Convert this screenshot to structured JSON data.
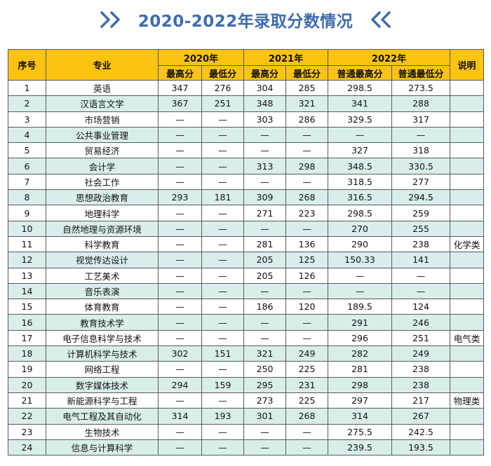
{
  "title": "2020-2022年录取分数情况",
  "headers": {
    "index": "序号",
    "major": "专业",
    "y2020": "2020年",
    "y2021": "2021年",
    "y2022": "2022年",
    "note": "说明",
    "max": "最高分",
    "min": "最低分",
    "common_max": "普通最高分",
    "common_min": "普通最低分"
  },
  "rows": [
    [
      "1",
      "英语",
      "347",
      "276",
      "304",
      "285",
      "298.5",
      "273.5",
      ""
    ],
    [
      "2",
      "汉语言文学",
      "367",
      "251",
      "348",
      "321",
      "341",
      "288",
      ""
    ],
    [
      "3",
      "市场营销",
      "—",
      "—",
      "303",
      "286",
      "329.5",
      "317",
      ""
    ],
    [
      "4",
      "公共事业管理",
      "—",
      "—",
      "—",
      "—",
      "—",
      "—",
      ""
    ],
    [
      "5",
      "贸易经济",
      "—",
      "—",
      "—",
      "—",
      "327",
      "318",
      ""
    ],
    [
      "6",
      "会计学",
      "—",
      "—",
      "313",
      "298",
      "348.5",
      "330.5",
      ""
    ],
    [
      "7",
      "社会工作",
      "—",
      "—",
      "—",
      "—",
      "318.5",
      "277",
      ""
    ],
    [
      "8",
      "思想政治教育",
      "293",
      "181",
      "309",
      "268",
      "316.5",
      "294.5",
      ""
    ],
    [
      "9",
      "地理科学",
      "—",
      "—",
      "271",
      "223",
      "298.5",
      "259",
      ""
    ],
    [
      "10",
      "自然地理与资源环境",
      "—",
      "—",
      "—",
      "—",
      "270",
      "255",
      ""
    ],
    [
      "11",
      "科学教育",
      "—",
      "—",
      "281",
      "136",
      "290",
      "238",
      "化学类"
    ],
    [
      "12",
      "视觉传达设计",
      "—",
      "—",
      "205",
      "125",
      "150.33",
      "141",
      ""
    ],
    [
      "13",
      "工艺美术",
      "—",
      "—",
      "205",
      "126",
      "—",
      "—",
      ""
    ],
    [
      "14",
      "音乐表演",
      "—",
      "—",
      "—",
      "—",
      "—",
      "—",
      ""
    ],
    [
      "15",
      "体育教育",
      "—",
      "—",
      "186",
      "120",
      "189.5",
      "124",
      ""
    ],
    [
      "16",
      "教育技术学",
      "—",
      "—",
      "—",
      "—",
      "291",
      "246",
      ""
    ],
    [
      "17",
      "电子信息科学与技术",
      "—",
      "—",
      "—",
      "—",
      "296",
      "251",
      "电气类"
    ],
    [
      "18",
      "计算机科学与技术",
      "302",
      "151",
      "321",
      "249",
      "282",
      "249",
      ""
    ],
    [
      "19",
      "网络工程",
      "—",
      "—",
      "250",
      "225",
      "281",
      "238",
      ""
    ],
    [
      "20",
      "数字媒体技术",
      "294",
      "159",
      "295",
      "231",
      "298",
      "238",
      ""
    ],
    [
      "21",
      "新能源科学与工程",
      "—",
      "—",
      "273",
      "225",
      "297",
      "217",
      "物理类"
    ],
    [
      "22",
      "电气工程及其自动化",
      "314",
      "193",
      "301",
      "268",
      "314",
      "267",
      ""
    ],
    [
      "23",
      "生物技术",
      "—",
      "—",
      "—",
      "—",
      "275.5",
      "242.5",
      ""
    ],
    [
      "24",
      "信息与计算科学",
      "—",
      "—",
      "—",
      "—",
      "239.5",
      "193.5",
      ""
    ]
  ],
  "icons": {
    "left": "chevron-right-double-icon",
    "right": "chevron-left-double-icon"
  },
  "colors": {
    "accent": "#3f6cad",
    "header": "#fcc310",
    "stripe": "#d9eeec"
  }
}
